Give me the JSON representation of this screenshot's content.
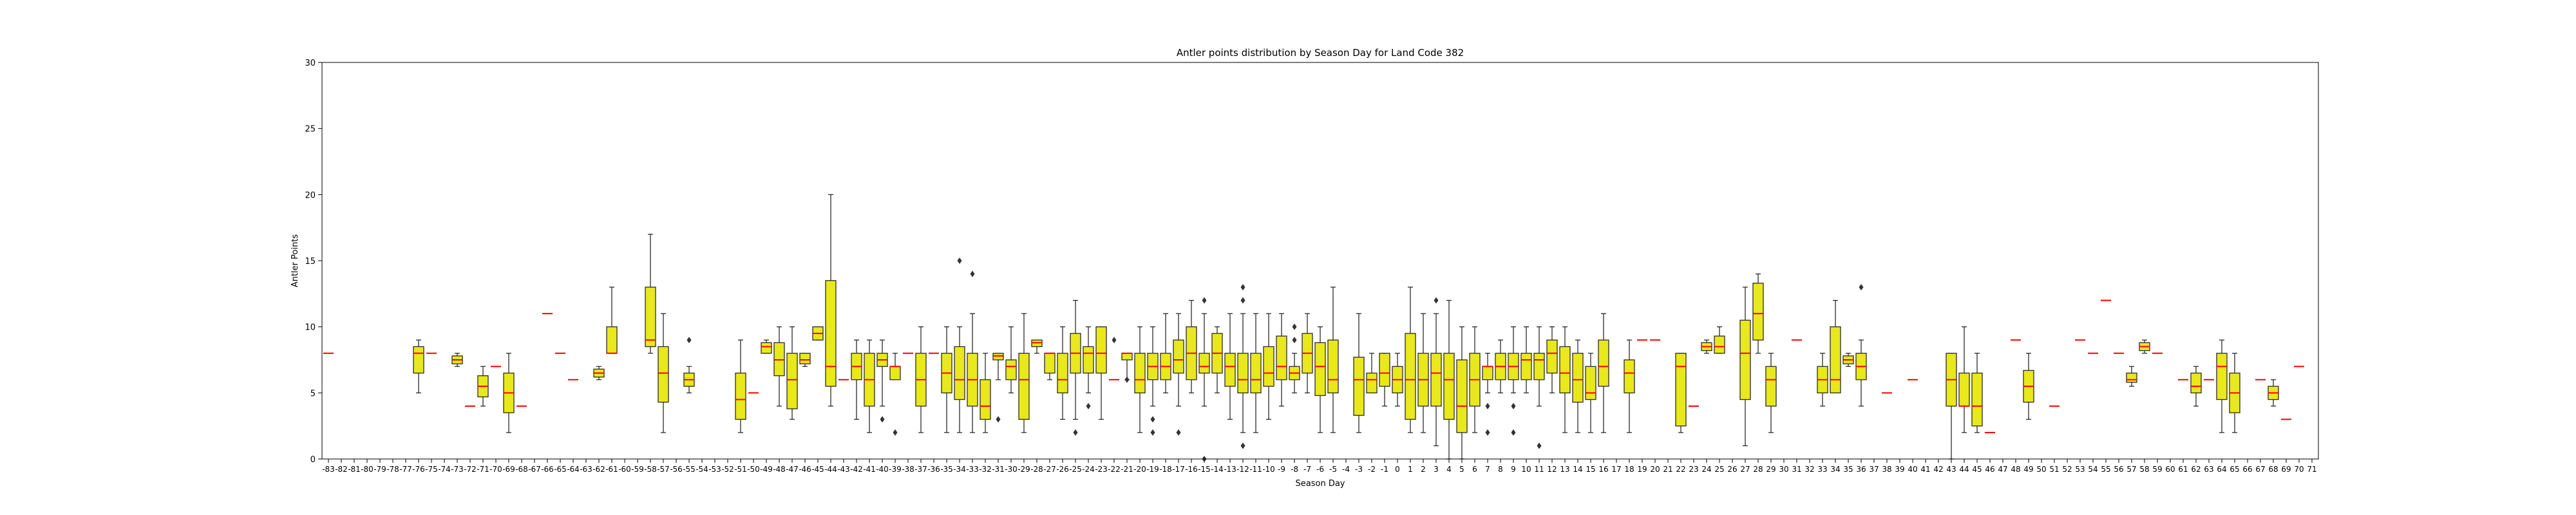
{
  "chart_data": {
    "type": "box",
    "title": "Antler points distribution by Season Day for Land Code 382",
    "xlabel": "Season Day",
    "ylabel": "Antler Points",
    "ylim": [
      0,
      30
    ],
    "yticks": [
      0,
      5,
      10,
      15,
      20,
      25,
      30
    ],
    "grid": false,
    "colors": {
      "box_fill": "#e8e81c",
      "box_edge": "#2b2b2b",
      "median": "#ff0000",
      "whisker": "#2b2b2b"
    },
    "categories": [
      -83,
      -82,
      -81,
      -80,
      -79,
      -78,
      -77,
      -76,
      -75,
      -74,
      -73,
      -72,
      -71,
      -70,
      -69,
      -68,
      -67,
      -66,
      -65,
      -64,
      -63,
      -62,
      -61,
      -60,
      -59,
      -58,
      -57,
      -56,
      -55,
      -54,
      -53,
      -52,
      -51,
      -50,
      -49,
      -48,
      -47,
      -46,
      -45,
      -44,
      -43,
      -42,
      -41,
      -40,
      -39,
      -38,
      -37,
      -36,
      -35,
      -34,
      -33,
      -32,
      -31,
      -30,
      -29,
      -28,
      -27,
      -26,
      -25,
      -24,
      -23,
      -22,
      -21,
      -20,
      -19,
      -18,
      -17,
      -16,
      -15,
      -14,
      -13,
      -12,
      -11,
      -10,
      -9,
      -8,
      -7,
      -6,
      -5,
      -4,
      -3,
      -2,
      -1,
      0,
      1,
      2,
      3,
      4,
      5,
      6,
      7,
      8,
      9,
      10,
      11,
      12,
      13,
      14,
      15,
      16,
      17,
      18,
      19,
      20,
      21,
      22,
      23,
      24,
      25,
      26,
      27,
      28,
      29,
      30,
      31,
      32,
      33,
      34,
      35,
      36,
      37,
      38,
      39,
      40,
      41,
      42,
      43,
      44,
      45,
      46,
      47,
      48,
      49,
      50,
      51,
      52,
      53,
      54,
      55,
      56,
      57,
      58,
      59,
      60,
      61,
      62,
      63,
      64,
      65,
      66,
      67,
      68,
      69,
      70,
      71
    ],
    "boxes": [
      {
        "day": -83,
        "q1": 8,
        "med": 8,
        "q3": 8,
        "lo": 8,
        "hi": 8
      },
      {
        "day": -76,
        "q1": 6.5,
        "med": 8,
        "q3": 8.5,
        "lo": 5,
        "hi": 9
      },
      {
        "day": -75,
        "q1": 8,
        "med": 8,
        "q3": 8,
        "lo": 8,
        "hi": 8
      },
      {
        "day": -73,
        "q1": 7.2,
        "med": 7.5,
        "q3": 7.8,
        "lo": 7,
        "hi": 8
      },
      {
        "day": -72,
        "q1": 4,
        "med": 4,
        "q3": 4,
        "lo": 4,
        "hi": 4
      },
      {
        "day": -71,
        "q1": 4.7,
        "med": 5.5,
        "q3": 6.3,
        "lo": 4,
        "hi": 7
      },
      {
        "day": -70,
        "q1": 7,
        "med": 7,
        "q3": 7,
        "lo": 7,
        "hi": 7
      },
      {
        "day": -69,
        "q1": 3.5,
        "med": 5,
        "q3": 6.5,
        "lo": 2,
        "hi": 8
      },
      {
        "day": -68,
        "q1": 4,
        "med": 4,
        "q3": 4,
        "lo": 4,
        "hi": 4
      },
      {
        "day": -66,
        "q1": 11,
        "med": 11,
        "q3": 11,
        "lo": 11,
        "hi": 11
      },
      {
        "day": -65,
        "q1": 8,
        "med": 8,
        "q3": 8,
        "lo": 8,
        "hi": 8
      },
      {
        "day": -64,
        "q1": 6,
        "med": 6,
        "q3": 6,
        "lo": 6,
        "hi": 6
      },
      {
        "day": -62,
        "q1": 6.2,
        "med": 6.5,
        "q3": 6.8,
        "lo": 6,
        "hi": 7
      },
      {
        "day": -61,
        "q1": 8,
        "med": 8,
        "q3": 10,
        "lo": 8,
        "hi": 13
      },
      {
        "day": -58,
        "q1": 8.5,
        "med": 9,
        "q3": 13,
        "lo": 8,
        "hi": 17
      },
      {
        "day": -57,
        "q1": 4.3,
        "med": 6.5,
        "q3": 8.5,
        "lo": 2,
        "hi": 11
      },
      {
        "day": -55,
        "q1": 5.5,
        "med": 6,
        "q3": 6.5,
        "lo": 5,
        "hi": 7,
        "out": [
          9
        ]
      },
      {
        "day": -51,
        "q1": 3,
        "med": 4.5,
        "q3": 6.5,
        "lo": 2,
        "hi": 9
      },
      {
        "day": -50,
        "q1": 5,
        "med": 5,
        "q3": 5,
        "lo": 5,
        "hi": 5
      },
      {
        "day": -49,
        "q1": 8,
        "med": 8.5,
        "q3": 8.8,
        "lo": 8,
        "hi": 9
      },
      {
        "day": -48,
        "q1": 6.3,
        "med": 7.5,
        "q3": 8.8,
        "lo": 4,
        "hi": 10
      },
      {
        "day": -47,
        "q1": 3.8,
        "med": 6,
        "q3": 8,
        "lo": 3,
        "hi": 10
      },
      {
        "day": -46,
        "q1": 7.2,
        "med": 7.5,
        "q3": 8,
        "lo": 7,
        "hi": 8
      },
      {
        "day": -45,
        "q1": 9,
        "med": 9.5,
        "q3": 10,
        "lo": 9,
        "hi": 10
      },
      {
        "day": -44,
        "q1": 5.5,
        "med": 7,
        "q3": 13.5,
        "lo": 4,
        "hi": 20
      },
      {
        "day": -43,
        "q1": 6,
        "med": 6,
        "q3": 6,
        "lo": 6,
        "hi": 6
      },
      {
        "day": -42,
        "q1": 6,
        "med": 7,
        "q3": 8,
        "lo": 3,
        "hi": 9
      },
      {
        "day": -41,
        "q1": 4,
        "med": 6,
        "q3": 8,
        "lo": 2,
        "hi": 9
      },
      {
        "day": -40,
        "q1": 7,
        "med": 7.5,
        "q3": 8,
        "lo": 4,
        "hi": 9,
        "out": [
          3
        ]
      },
      {
        "day": -39,
        "q1": 6,
        "med": 7,
        "q3": 7,
        "lo": 6,
        "hi": 8,
        "out": [
          2
        ]
      },
      {
        "day": -38,
        "q1": 8,
        "med": 8,
        "q3": 8,
        "lo": 8,
        "hi": 8
      },
      {
        "day": -37,
        "q1": 4,
        "med": 6,
        "q3": 8,
        "lo": 2,
        "hi": 10
      },
      {
        "day": -36,
        "q1": 8,
        "med": 8,
        "q3": 8,
        "lo": 8,
        "hi": 8
      },
      {
        "day": -35,
        "q1": 5,
        "med": 6.5,
        "q3": 8,
        "lo": 2,
        "hi": 10
      },
      {
        "day": -34,
        "q1": 4.5,
        "med": 6,
        "q3": 8.5,
        "lo": 2,
        "hi": 10,
        "out": [
          15
        ]
      },
      {
        "day": -33,
        "q1": 4,
        "med": 6,
        "q3": 8,
        "lo": 2,
        "hi": 11,
        "out": [
          14
        ]
      },
      {
        "day": -32,
        "q1": 3,
        "med": 4,
        "q3": 6,
        "lo": 2,
        "hi": 8
      },
      {
        "day": -31,
        "q1": 7.5,
        "med": 7.8,
        "q3": 8,
        "lo": 6,
        "hi": 8,
        "out": [
          3
        ]
      },
      {
        "day": -30,
        "q1": 6,
        "med": 7,
        "q3": 7.5,
        "lo": 5,
        "hi": 10
      },
      {
        "day": -29,
        "q1": 3,
        "med": 6,
        "q3": 8,
        "lo": 2,
        "hi": 11
      },
      {
        "day": -28,
        "q1": 8.5,
        "med": 8.8,
        "q3": 9,
        "lo": 8,
        "hi": 9
      },
      {
        "day": -27,
        "q1": 6.5,
        "med": 8,
        "q3": 8,
        "lo": 6,
        "hi": 8
      },
      {
        "day": -26,
        "q1": 5,
        "med": 6,
        "q3": 8,
        "lo": 3,
        "hi": 10
      },
      {
        "day": -25,
        "q1": 6.5,
        "med": 8,
        "q3": 9.5,
        "lo": 3,
        "hi": 12,
        "out": [
          2
        ]
      },
      {
        "day": -24,
        "q1": 6.5,
        "med": 8,
        "q3": 8.5,
        "lo": 5,
        "hi": 10,
        "out": [
          4
        ]
      },
      {
        "day": -23,
        "q1": 6.5,
        "med": 8,
        "q3": 10,
        "lo": 3,
        "hi": 10
      },
      {
        "day": -22,
        "q1": 6,
        "med": 6,
        "q3": 6,
        "lo": 6,
        "hi": 6,
        "out": [
          9
        ]
      },
      {
        "day": -21,
        "q1": 7.5,
        "med": 8,
        "q3": 8,
        "lo": 6,
        "hi": 8,
        "out": [
          6
        ]
      },
      {
        "day": -20,
        "q1": 5,
        "med": 6,
        "q3": 8,
        "lo": 2,
        "hi": 10
      },
      {
        "day": -19,
        "q1": 6,
        "med": 7,
        "q3": 8,
        "lo": 4,
        "hi": 10,
        "out": [
          3,
          2
        ]
      },
      {
        "day": -18,
        "q1": 6,
        "med": 7,
        "q3": 8,
        "lo": 5,
        "hi": 11
      },
      {
        "day": -17,
        "q1": 6.5,
        "med": 7.5,
        "q3": 9,
        "lo": 4,
        "hi": 11,
        "out": [
          2
        ]
      },
      {
        "day": -16,
        "q1": 6,
        "med": 8,
        "q3": 10,
        "lo": 5,
        "hi": 12
      },
      {
        "day": -15,
        "q1": 6.5,
        "med": 7,
        "q3": 8,
        "lo": 4,
        "hi": 11,
        "out": [
          12,
          0
        ]
      },
      {
        "day": -14,
        "q1": 6.5,
        "med": 8,
        "q3": 9.5,
        "lo": 5,
        "hi": 10
      },
      {
        "day": -13,
        "q1": 5.5,
        "med": 7,
        "q3": 8,
        "lo": 3,
        "hi": 11
      },
      {
        "day": -12,
        "q1": 5,
        "med": 6,
        "q3": 8,
        "lo": 2,
        "hi": 11,
        "out": [
          13,
          12,
          1
        ]
      },
      {
        "day": -11,
        "q1": 5,
        "med": 6,
        "q3": 8,
        "lo": 2,
        "hi": 11
      },
      {
        "day": -10,
        "q1": 5.5,
        "med": 6.5,
        "q3": 8.5,
        "lo": 3,
        "hi": 11
      },
      {
        "day": -9,
        "q1": 6,
        "med": 7,
        "q3": 9.3,
        "lo": 4,
        "hi": 11
      },
      {
        "day": -8,
        "q1": 6,
        "med": 6.5,
        "q3": 7,
        "lo": 5,
        "hi": 8,
        "out": [
          10,
          9
        ]
      },
      {
        "day": -7,
        "q1": 6.5,
        "med": 8,
        "q3": 9.5,
        "lo": 5,
        "hi": 11
      },
      {
        "day": -6,
        "q1": 4.8,
        "med": 7,
        "q3": 8.8,
        "lo": 2,
        "hi": 10
      },
      {
        "day": -5,
        "q1": 5,
        "med": 6,
        "q3": 9,
        "lo": 2,
        "hi": 13
      },
      {
        "day": -3,
        "q1": 3.3,
        "med": 6,
        "q3": 7.7,
        "lo": 2,
        "hi": 11
      },
      {
        "day": -2,
        "q1": 5,
        "med": 6,
        "q3": 6.5,
        "lo": 5,
        "hi": 8
      },
      {
        "day": -1,
        "q1": 5.5,
        "med": 6.5,
        "q3": 8,
        "lo": 4,
        "hi": 8
      },
      {
        "day": 0,
        "q1": 5,
        "med": 6,
        "q3": 7,
        "lo": 4,
        "hi": 8
      },
      {
        "day": 1,
        "q1": 3,
        "med": 6,
        "q3": 9.5,
        "lo": 2,
        "hi": 13
      },
      {
        "day": 2,
        "q1": 4,
        "med": 6,
        "q3": 8,
        "lo": 2,
        "hi": 11
      },
      {
        "day": 3,
        "q1": 4,
        "med": 6.5,
        "q3": 8,
        "lo": 1,
        "hi": 11,
        "out": [
          12
        ]
      },
      {
        "day": 4,
        "q1": 3,
        "med": 6,
        "q3": 8,
        "lo": 0,
        "hi": 12
      },
      {
        "day": 5,
        "q1": 2,
        "med": 4,
        "q3": 7.5,
        "lo": 0,
        "hi": 10
      },
      {
        "day": 6,
        "q1": 4,
        "med": 6,
        "q3": 8,
        "lo": 2,
        "hi": 10
      },
      {
        "day": 7,
        "q1": 6,
        "med": 7,
        "q3": 7,
        "lo": 5,
        "hi": 8,
        "out": [
          4,
          2
        ]
      },
      {
        "day": 8,
        "q1": 6,
        "med": 7,
        "q3": 8,
        "lo": 5,
        "hi": 9
      },
      {
        "day": 9,
        "q1": 6,
        "med": 7,
        "q3": 8,
        "lo": 5,
        "hi": 10,
        "out": [
          4,
          2
        ]
      },
      {
        "day": 10,
        "q1": 6,
        "med": 7.5,
        "q3": 8,
        "lo": 5,
        "hi": 10
      },
      {
        "day": 11,
        "q1": 6,
        "med": 7.5,
        "q3": 8,
        "lo": 4,
        "hi": 10,
        "out": [
          1
        ]
      },
      {
        "day": 12,
        "q1": 6.5,
        "med": 8,
        "q3": 9,
        "lo": 5,
        "hi": 10
      },
      {
        "day": 13,
        "q1": 5,
        "med": 6.5,
        "q3": 8.5,
        "lo": 2,
        "hi": 10
      },
      {
        "day": 14,
        "q1": 4.3,
        "med": 6,
        "q3": 8,
        "lo": 2,
        "hi": 9
      },
      {
        "day": 15,
        "q1": 4.5,
        "med": 5,
        "q3": 7,
        "lo": 2,
        "hi": 8
      },
      {
        "day": 16,
        "q1": 5.5,
        "med": 7,
        "q3": 9,
        "lo": 2,
        "hi": 11
      },
      {
        "day": 18,
        "q1": 5,
        "med": 6.5,
        "q3": 7.5,
        "lo": 2,
        "hi": 9
      },
      {
        "day": 19,
        "q1": 9,
        "med": 9,
        "q3": 9,
        "lo": 9,
        "hi": 9
      },
      {
        "day": 20,
        "q1": 9,
        "med": 9,
        "q3": 9,
        "lo": 9,
        "hi": 9
      },
      {
        "day": 22,
        "q1": 2.5,
        "med": 7,
        "q3": 8,
        "lo": 2,
        "hi": 8
      },
      {
        "day": 23,
        "q1": 4,
        "med": 4,
        "q3": 4,
        "lo": 4,
        "hi": 4
      },
      {
        "day": 24,
        "q1": 8.2,
        "med": 8.5,
        "q3": 8.8,
        "lo": 8,
        "hi": 9
      },
      {
        "day": 25,
        "q1": 8,
        "med": 8.5,
        "q3": 9.3,
        "lo": 8,
        "hi": 10
      },
      {
        "day": 27,
        "q1": 4.5,
        "med": 8,
        "q3": 10.5,
        "lo": 1,
        "hi": 13
      },
      {
        "day": 28,
        "q1": 9,
        "med": 11,
        "q3": 13.3,
        "lo": 8,
        "hi": 14
      },
      {
        "day": 29,
        "q1": 4,
        "med": 6,
        "q3": 7,
        "lo": 2,
        "hi": 8
      },
      {
        "day": 31,
        "q1": 9,
        "med": 9,
        "q3": 9,
        "lo": 9,
        "hi": 9
      },
      {
        "day": 33,
        "q1": 5,
        "med": 6,
        "q3": 7,
        "lo": 4,
        "hi": 8
      },
      {
        "day": 34,
        "q1": 5,
        "med": 6,
        "q3": 10,
        "lo": 5,
        "hi": 12
      },
      {
        "day": 35,
        "q1": 7.2,
        "med": 7.5,
        "q3": 7.8,
        "lo": 7,
        "hi": 8
      },
      {
        "day": 36,
        "q1": 6,
        "med": 7,
        "q3": 8,
        "lo": 4,
        "hi": 9,
        "out": [
          13
        ]
      },
      {
        "day": 38,
        "q1": 5,
        "med": 5,
        "q3": 5,
        "lo": 5,
        "hi": 5
      },
      {
        "day": 40,
        "q1": 6,
        "med": 6,
        "q3": 6,
        "lo": 6,
        "hi": 6
      },
      {
        "day": 43,
        "q1": 4,
        "med": 6,
        "q3": 8,
        "lo": 0,
        "hi": 8
      },
      {
        "day": 44,
        "q1": 4,
        "med": 4,
        "q3": 6.5,
        "lo": 2,
        "hi": 10
      },
      {
        "day": 45,
        "q1": 2.5,
        "med": 4,
        "q3": 6.5,
        "lo": 2,
        "hi": 8
      },
      {
        "day": 46,
        "q1": 2,
        "med": 2,
        "q3": 2,
        "lo": 2,
        "hi": 2
      },
      {
        "day": 48,
        "q1": 9,
        "med": 9,
        "q3": 9,
        "lo": 9,
        "hi": 9
      },
      {
        "day": 49,
        "q1": 4.3,
        "med": 5.5,
        "q3": 6.7,
        "lo": 3,
        "hi": 8
      },
      {
        "day": 51,
        "q1": 4,
        "med": 4,
        "q3": 4,
        "lo": 4,
        "hi": 4
      },
      {
        "day": 53,
        "q1": 9,
        "med": 9,
        "q3": 9,
        "lo": 9,
        "hi": 9
      },
      {
        "day": 54,
        "q1": 8,
        "med": 8,
        "q3": 8,
        "lo": 8,
        "hi": 8
      },
      {
        "day": 55,
        "q1": 12,
        "med": 12,
        "q3": 12,
        "lo": 12,
        "hi": 12
      },
      {
        "day": 56,
        "q1": 8,
        "med": 8,
        "q3": 8,
        "lo": 8,
        "hi": 8
      },
      {
        "day": 57,
        "q1": 5.8,
        "med": 6,
        "q3": 6.5,
        "lo": 5.5,
        "hi": 7
      },
      {
        "day": 58,
        "q1": 8.2,
        "med": 8.5,
        "q3": 8.8,
        "lo": 8,
        "hi": 9
      },
      {
        "day": 59,
        "q1": 8,
        "med": 8,
        "q3": 8,
        "lo": 8,
        "hi": 8
      },
      {
        "day": 61,
        "q1": 6,
        "med": 6,
        "q3": 6,
        "lo": 6,
        "hi": 6
      },
      {
        "day": 62,
        "q1": 5,
        "med": 5.5,
        "q3": 6.5,
        "lo": 4,
        "hi": 7
      },
      {
        "day": 63,
        "q1": 6,
        "med": 6,
        "q3": 6,
        "lo": 6,
        "hi": 6
      },
      {
        "day": 64,
        "q1": 4.5,
        "med": 7,
        "q3": 8,
        "lo": 2,
        "hi": 9
      },
      {
        "day": 65,
        "q1": 3.5,
        "med": 5,
        "q3": 6.5,
        "lo": 2,
        "hi": 8
      },
      {
        "day": 67,
        "q1": 6,
        "med": 6,
        "q3": 6,
        "lo": 6,
        "hi": 6
      },
      {
        "day": 68,
        "q1": 4.5,
        "med": 5,
        "q3": 5.5,
        "lo": 4,
        "hi": 6
      },
      {
        "day": 69,
        "q1": 3,
        "med": 3,
        "q3": 3,
        "lo": 3,
        "hi": 3
      },
      {
        "day": 70,
        "q1": 7,
        "med": 7,
        "q3": 7,
        "lo": 7,
        "hi": 7
      }
    ]
  }
}
